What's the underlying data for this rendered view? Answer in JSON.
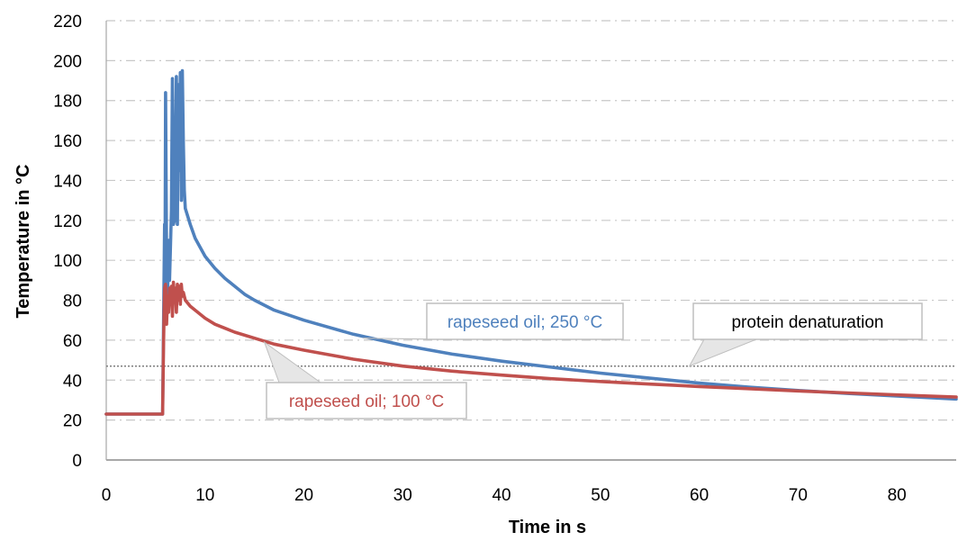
{
  "chart_data": {
    "type": "line",
    "title": "",
    "xlabel": "Time in s",
    "ylabel": "Temperature in °C",
    "xlim": [
      0,
      86
    ],
    "ylim": [
      0,
      220
    ],
    "x_ticks": [
      0,
      10,
      20,
      30,
      40,
      50,
      60,
      70,
      80
    ],
    "y_ticks": [
      0,
      20,
      40,
      60,
      80,
      100,
      120,
      140,
      160,
      180,
      200,
      220
    ],
    "grid": "horizontal dashed",
    "legend": "none (inline callout labels)",
    "series": [
      {
        "name": "rapeseed oil; 250 °C",
        "color": "#4f81bd",
        "points": [
          [
            0,
            23
          ],
          [
            5.6,
            23
          ],
          [
            5.7,
            23
          ],
          [
            5.8,
            70
          ],
          [
            5.9,
            118
          ],
          [
            5.95,
            95
          ],
          [
            6.0,
            184
          ],
          [
            6.1,
            100
          ],
          [
            6.2,
            80
          ],
          [
            6.3,
            110
          ],
          [
            6.4,
            90
          ],
          [
            6.6,
            125
          ],
          [
            6.7,
            191
          ],
          [
            6.8,
            118
          ],
          [
            6.9,
            120
          ],
          [
            7.0,
            150
          ],
          [
            7.1,
            192
          ],
          [
            7.2,
            118
          ],
          [
            7.3,
            188
          ],
          [
            7.4,
            145
          ],
          [
            7.5,
            194
          ],
          [
            7.6,
            130
          ],
          [
            7.7,
            195
          ],
          [
            7.8,
            160
          ],
          [
            7.9,
            135
          ],
          [
            8.0,
            126
          ],
          [
            8.5,
            118
          ],
          [
            9.0,
            111
          ],
          [
            10,
            102
          ],
          [
            11,
            96
          ],
          [
            12,
            91
          ],
          [
            13,
            87
          ],
          [
            14,
            83
          ],
          [
            15,
            80
          ],
          [
            17,
            75
          ],
          [
            20,
            70
          ],
          [
            25,
            63
          ],
          [
            30,
            57.5
          ],
          [
            35,
            53
          ],
          [
            40,
            49.5
          ],
          [
            45,
            46.5
          ],
          [
            50,
            43.5
          ],
          [
            55,
            41
          ],
          [
            60,
            38.5
          ],
          [
            65,
            36.5
          ],
          [
            70,
            34.8
          ],
          [
            75,
            33.3
          ],
          [
            80,
            32
          ],
          [
            86,
            30.5
          ]
        ]
      },
      {
        "name": "rapeseed oil; 100 °C",
        "color": "#c0504d",
        "points": [
          [
            0,
            23
          ],
          [
            5.6,
            23
          ],
          [
            5.7,
            23
          ],
          [
            5.8,
            60
          ],
          [
            5.9,
            86
          ],
          [
            6.0,
            88
          ],
          [
            6.1,
            68
          ],
          [
            6.2,
            82
          ],
          [
            6.3,
            74
          ],
          [
            6.4,
            86
          ],
          [
            6.5,
            80
          ],
          [
            6.6,
            87
          ],
          [
            6.7,
            72
          ],
          [
            6.8,
            89
          ],
          [
            6.9,
            80
          ],
          [
            7.0,
            86
          ],
          [
            7.1,
            74
          ],
          [
            7.2,
            88
          ],
          [
            7.3,
            80
          ],
          [
            7.4,
            87
          ],
          [
            7.5,
            78
          ],
          [
            7.6,
            88
          ],
          [
            7.7,
            82
          ],
          [
            7.8,
            84
          ],
          [
            8.0,
            80
          ],
          [
            8.5,
            77
          ],
          [
            9.0,
            75
          ],
          [
            10,
            71
          ],
          [
            11,
            68
          ],
          [
            12,
            66
          ],
          [
            13,
            64
          ],
          [
            15,
            61
          ],
          [
            17,
            58
          ],
          [
            20,
            55
          ],
          [
            25,
            50.5
          ],
          [
            30,
            47
          ],
          [
            35,
            44.5
          ],
          [
            40,
            42.5
          ],
          [
            45,
            40.7
          ],
          [
            50,
            39.3
          ],
          [
            55,
            38
          ],
          [
            60,
            36.8
          ],
          [
            65,
            35.7
          ],
          [
            70,
            34.6
          ],
          [
            75,
            33.6
          ],
          [
            80,
            32.6
          ],
          [
            86,
            31.5
          ]
        ]
      }
    ],
    "reference_line": {
      "name": "protein denaturation",
      "y": 47,
      "color": "#7f7f7f"
    },
    "annotations": [
      {
        "text": "rapeseed oil; 250 °C",
        "target": [
          26,
          61
        ],
        "color": "#4f81bd"
      },
      {
        "text": "protein denaturation",
        "target": [
          59,
          47
        ],
        "color": "#000000"
      },
      {
        "text": "rapeseed oil; 100 °C",
        "target": [
          16,
          59
        ],
        "color": "#c0504d"
      }
    ]
  }
}
